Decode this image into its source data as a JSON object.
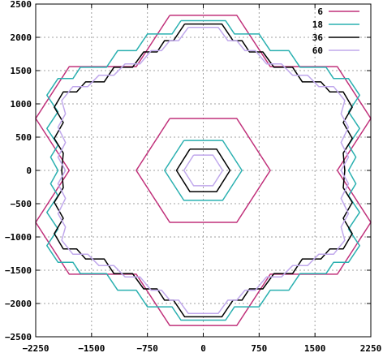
{
  "chart_data": {
    "type": "line",
    "title": "",
    "xlabel": "",
    "ylabel": "",
    "xlim": [
      -2250,
      2250
    ],
    "ylim": [
      -2500,
      2500
    ],
    "xticks": [
      -2250,
      -1500,
      -750,
      0,
      750,
      1500,
      2250
    ],
    "yticks": [
      -2500,
      -2000,
      -1500,
      -1000,
      -500,
      0,
      500,
      1000,
      1500,
      2000,
      2500
    ],
    "grid": true,
    "legend_position": "top-right",
    "series": [
      {
        "name": "6",
        "color": "#c0307a",
        "paths": [
          [
            [
              -450,
              2330
            ],
            [
              450,
              2330
            ],
            [
              900,
              1560
            ],
            [
              1800,
              1560
            ],
            [
              2250,
              780
            ],
            [
              1800,
              0
            ],
            [
              2250,
              -780
            ],
            [
              1800,
              -1560
            ],
            [
              900,
              -1560
            ],
            [
              450,
              -2330
            ],
            [
              -450,
              -2330
            ],
            [
              -900,
              -1560
            ],
            [
              -1800,
              -1560
            ],
            [
              -2250,
              -780
            ],
            [
              -1800,
              0
            ],
            [
              -2250,
              780
            ],
            [
              -1800,
              1560
            ],
            [
              -900,
              1560
            ],
            [
              -450,
              2330
            ]
          ],
          [
            [
              -450,
              780
            ],
            [
              450,
              780
            ],
            [
              900,
              0
            ],
            [
              450,
              -780
            ],
            [
              -450,
              -780
            ],
            [
              -900,
              0
            ],
            [
              -450,
              780
            ]
          ]
        ]
      },
      {
        "name": "18",
        "color": "#2ab0b0",
        "paths": [
          [
            [
              -300,
              2250
            ],
            [
              300,
              2250
            ],
            [
              420,
              2050
            ],
            [
              750,
              2050
            ],
            [
              900,
              1800
            ],
            [
              1150,
              1800
            ],
            [
              1300,
              1550
            ],
            [
              1650,
              1550
            ],
            [
              1750,
              1380
            ],
            [
              1950,
              1380
            ],
            [
              2100,
              1130
            ],
            [
              1950,
              880
            ],
            [
              2100,
              630
            ],
            [
              1950,
              380
            ],
            [
              2050,
              200
            ],
            [
              1950,
              0
            ],
            [
              2050,
              -200
            ],
            [
              1950,
              -380
            ],
            [
              2100,
              -630
            ],
            [
              1950,
              -880
            ],
            [
              2100,
              -1130
            ],
            [
              1950,
              -1380
            ],
            [
              1750,
              -1380
            ],
            [
              1650,
              -1550
            ],
            [
              1300,
              -1550
            ],
            [
              1150,
              -1800
            ],
            [
              900,
              -1800
            ],
            [
              750,
              -2050
            ],
            [
              420,
              -2050
            ],
            [
              300,
              -2250
            ],
            [
              -300,
              -2250
            ],
            [
              -420,
              -2050
            ],
            [
              -750,
              -2050
            ],
            [
              -900,
              -1800
            ],
            [
              -1150,
              -1800
            ],
            [
              -1300,
              -1550
            ],
            [
              -1650,
              -1550
            ],
            [
              -1750,
              -1380
            ],
            [
              -1950,
              -1380
            ],
            [
              -2100,
              -1130
            ],
            [
              -1950,
              -880
            ],
            [
              -2100,
              -630
            ],
            [
              -1950,
              -380
            ],
            [
              -2050,
              -200
            ],
            [
              -1950,
              0
            ],
            [
              -2050,
              200
            ],
            [
              -1950,
              380
            ],
            [
              -2100,
              630
            ],
            [
              -1950,
              880
            ],
            [
              -2100,
              1130
            ],
            [
              -1950,
              1380
            ],
            [
              -1750,
              1380
            ],
            [
              -1650,
              1550
            ],
            [
              -1300,
              1550
            ],
            [
              -1150,
              1800
            ],
            [
              -900,
              1800
            ],
            [
              -750,
              2050
            ],
            [
              -420,
              2050
            ],
            [
              -300,
              2250
            ]
          ],
          [
            [
              -260,
              450
            ],
            [
              260,
              450
            ],
            [
              520,
              0
            ],
            [
              260,
              -450
            ],
            [
              -260,
              -450
            ],
            [
              -520,
              0
            ],
            [
              -260,
              450
            ]
          ]
        ]
      },
      {
        "name": "36",
        "color": "#000000",
        "paths": [
          [
            [
              -250,
              2200
            ],
            [
              250,
              2200
            ],
            [
              400,
              1950
            ],
            [
              520,
              1950
            ],
            [
              620,
              1780
            ],
            [
              800,
              1780
            ],
            [
              950,
              1550
            ],
            [
              1200,
              1550
            ],
            [
              1330,
              1330
            ],
            [
              1580,
              1330
            ],
            [
              1700,
              1180
            ],
            [
              1880,
              1180
            ],
            [
              2000,
              950
            ],
            [
              1880,
              720
            ],
            [
              2000,
              480
            ],
            [
              1880,
              260
            ],
            [
              1900,
              0
            ],
            [
              1880,
              -260
            ],
            [
              2000,
              -480
            ],
            [
              1880,
              -720
            ],
            [
              2000,
              -950
            ],
            [
              1880,
              -1180
            ],
            [
              1700,
              -1180
            ],
            [
              1580,
              -1330
            ],
            [
              1330,
              -1330
            ],
            [
              1200,
              -1550
            ],
            [
              950,
              -1550
            ],
            [
              800,
              -1780
            ],
            [
              620,
              -1780
            ],
            [
              520,
              -1950
            ],
            [
              400,
              -1950
            ],
            [
              250,
              -2200
            ],
            [
              -250,
              -2200
            ],
            [
              -400,
              -1950
            ],
            [
              -520,
              -1950
            ],
            [
              -620,
              -1780
            ],
            [
              -800,
              -1780
            ],
            [
              -950,
              -1550
            ],
            [
              -1200,
              -1550
            ],
            [
              -1330,
              -1330
            ],
            [
              -1580,
              -1330
            ],
            [
              -1700,
              -1180
            ],
            [
              -1880,
              -1180
            ],
            [
              -2000,
              -950
            ],
            [
              -1880,
              -720
            ],
            [
              -2000,
              -480
            ],
            [
              -1880,
              -260
            ],
            [
              -1900,
              0
            ],
            [
              -1880,
              260
            ],
            [
              -2000,
              480
            ],
            [
              -1880,
              720
            ],
            [
              -2000,
              950
            ],
            [
              -1880,
              1180
            ],
            [
              -1700,
              1180
            ],
            [
              -1580,
              1330
            ],
            [
              -1330,
              1330
            ],
            [
              -1200,
              1550
            ],
            [
              -950,
              1550
            ],
            [
              -800,
              1780
            ],
            [
              -620,
              1780
            ],
            [
              -520,
              1950
            ],
            [
              -400,
              1950
            ],
            [
              -250,
              2200
            ]
          ],
          [
            [
              -180,
              320
            ],
            [
              180,
              320
            ],
            [
              360,
              0
            ],
            [
              180,
              -320
            ],
            [
              -180,
              -320
            ],
            [
              -360,
              0
            ],
            [
              -180,
              320
            ]
          ]
        ]
      },
      {
        "name": "60",
        "color": "#c0a8ec",
        "paths": [
          [
            [
              -200,
              2150
            ],
            [
              200,
              2150
            ],
            [
              330,
              1950
            ],
            [
              450,
              1950
            ],
            [
              560,
              1800
            ],
            [
              700,
              1800
            ],
            [
              850,
              1600
            ],
            [
              1050,
              1600
            ],
            [
              1200,
              1430
            ],
            [
              1400,
              1430
            ],
            [
              1550,
              1260
            ],
            [
              1750,
              1260
            ],
            [
              1900,
              1050
            ],
            [
              1850,
              850
            ],
            [
              1950,
              650
            ],
            [
              1850,
              420
            ],
            [
              1950,
              200
            ],
            [
              1850,
              0
            ],
            [
              1950,
              -200
            ],
            [
              1850,
              -420
            ],
            [
              1950,
              -650
            ],
            [
              1850,
              -850
            ],
            [
              1900,
              -1050
            ],
            [
              1750,
              -1260
            ],
            [
              1550,
              -1260
            ],
            [
              1400,
              -1430
            ],
            [
              1200,
              -1430
            ],
            [
              1050,
              -1600
            ],
            [
              850,
              -1600
            ],
            [
              700,
              -1800
            ],
            [
              560,
              -1800
            ],
            [
              450,
              -1950
            ],
            [
              330,
              -1950
            ],
            [
              200,
              -2150
            ],
            [
              -200,
              -2150
            ],
            [
              -330,
              -1950
            ],
            [
              -450,
              -1950
            ],
            [
              -560,
              -1800
            ],
            [
              -700,
              -1800
            ],
            [
              -850,
              -1600
            ],
            [
              -1050,
              -1600
            ],
            [
              -1200,
              -1430
            ],
            [
              -1400,
              -1430
            ],
            [
              -1550,
              -1260
            ],
            [
              -1750,
              -1260
            ],
            [
              -1900,
              -1050
            ],
            [
              -1850,
              -850
            ],
            [
              -1950,
              -650
            ],
            [
              -1850,
              -420
            ],
            [
              -1950,
              -200
            ],
            [
              -1850,
              0
            ],
            [
              -1950,
              200
            ],
            [
              -1850,
              420
            ],
            [
              -1950,
              650
            ],
            [
              -1850,
              850
            ],
            [
              -1900,
              1050
            ],
            [
              -1750,
              1260
            ],
            [
              -1550,
              1260
            ],
            [
              -1400,
              1430
            ],
            [
              -1200,
              1430
            ],
            [
              -1050,
              1600
            ],
            [
              -850,
              1600
            ],
            [
              -700,
              1800
            ],
            [
              -560,
              1800
            ],
            [
              -450,
              1950
            ],
            [
              -330,
              1950
            ],
            [
              -200,
              2150
            ]
          ],
          [
            [
              -130,
              230
            ],
            [
              130,
              230
            ],
            [
              260,
              0
            ],
            [
              130,
              -230
            ],
            [
              -130,
              -230
            ],
            [
              -260,
              0
            ],
            [
              -130,
              230
            ]
          ]
        ]
      }
    ]
  }
}
